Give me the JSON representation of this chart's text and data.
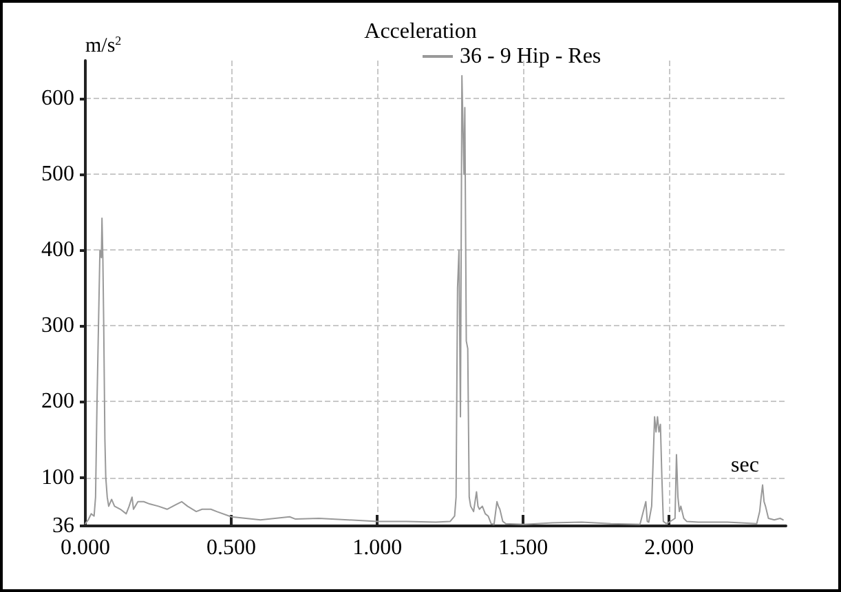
{
  "chart_data": {
    "type": "line",
    "title": "Acceleration",
    "xlabel": "sec",
    "ylabel": "m/s$^{2}$",
    "x": [
      0,
      0.01,
      0.02,
      0.03,
      0.035,
      0.04,
      0.045,
      0.05,
      0.055,
      0.057,
      0.06,
      0.063,
      0.067,
      0.07,
      0.075,
      0.08,
      0.09,
      0.1,
      0.12,
      0.14,
      0.15,
      0.16,
      0.165,
      0.18,
      0.2,
      0.22,
      0.25,
      0.28,
      0.3,
      0.33,
      0.35,
      0.38,
      0.4,
      0.43,
      0.45,
      0.5,
      0.55,
      0.6,
      0.65,
      0.7,
      0.72,
      0.8,
      0.9,
      1.0,
      1.1,
      1.2,
      1.25,
      1.265,
      1.27,
      1.275,
      1.28,
      1.285,
      1.29,
      1.297,
      1.3,
      1.305,
      1.31,
      1.315,
      1.32,
      1.33,
      1.34,
      1.345,
      1.35,
      1.36,
      1.37,
      1.38,
      1.39,
      1.4,
      1.41,
      1.415,
      1.42,
      1.43,
      1.44,
      1.5,
      1.6,
      1.7,
      1.8,
      1.9,
      1.92,
      1.925,
      1.93,
      1.94,
      1.95,
      1.955,
      1.96,
      1.965,
      1.97,
      1.975,
      1.98,
      1.99,
      2.0,
      2.02,
      2.025,
      2.03,
      2.035,
      2.04,
      2.05,
      2.06,
      2.1,
      2.2,
      2.3,
      2.31,
      2.315,
      2.32,
      2.325,
      2.33,
      2.34,
      2.36,
      2.38,
      2.39
    ],
    "series": [
      {
        "name": "36 - 9 Hip - Res",
        "color": "#999999",
        "values": [
          39,
          44,
          52,
          49,
          74,
          200,
          300,
          400,
          390,
          442,
          390,
          300,
          150,
          100,
          74,
          62,
          71,
          62,
          58,
          52,
          62,
          74,
          58,
          68,
          68,
          65,
          62,
          58,
          62,
          68,
          62,
          55,
          58,
          58,
          55,
          48,
          46,
          44,
          46,
          48,
          45,
          46,
          44,
          42,
          42,
          41,
          42,
          49,
          74,
          350,
          400,
          180,
          630,
          500,
          588,
          280,
          270,
          74,
          62,
          55,
          81,
          62,
          58,
          62,
          52,
          49,
          39,
          38,
          68,
          62,
          58,
          42,
          39,
          38,
          40,
          41,
          39,
          38,
          68,
          42,
          41,
          62,
          180,
          160,
          180,
          160,
          170,
          100,
          42,
          39,
          41,
          46,
          130,
          74,
          55,
          62,
          46,
          42,
          41,
          41,
          39,
          55,
          74,
          90,
          68,
          62,
          46,
          44,
          46,
          44
        ]
      }
    ],
    "xlim": [
      0,
      2.4
    ],
    "ylim": [
      36,
      650
    ],
    "xticks": [
      {
        "value": 0,
        "label": "0.000"
      },
      {
        "value": 0.5,
        "label": "0.500"
      },
      {
        "value": 1,
        "label": "1.000"
      },
      {
        "value": 1.5,
        "label": "1.500"
      },
      {
        "value": 2,
        "label": "2.000"
      }
    ],
    "yticks": [
      36,
      100,
      200,
      300,
      400,
      500,
      600
    ],
    "grid": true,
    "legend": "top",
    "marker": "none",
    "line_style": "solid"
  }
}
